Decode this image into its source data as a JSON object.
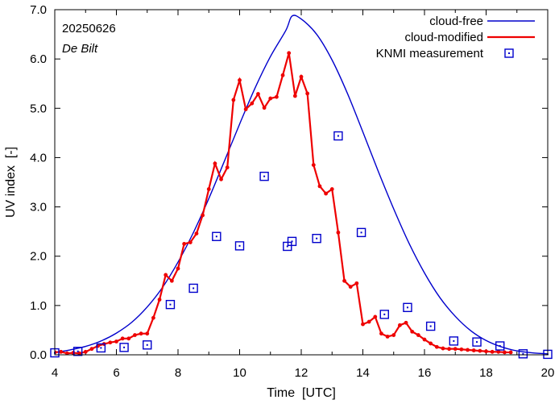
{
  "chart_data": {
    "type": "line",
    "xlabel": "Time  [UTC]",
    "ylabel": "UV index  [-]",
    "xlim": [
      4,
      20
    ],
    "ylim": [
      0,
      7
    ],
    "x_ticks": [
      4,
      6,
      8,
      10,
      12,
      14,
      16,
      18,
      20
    ],
    "x_tick_labels": [
      "4",
      "6",
      "8",
      "10",
      "12",
      "14",
      "16",
      "18",
      "20"
    ],
    "y_ticks": [
      0,
      1,
      2,
      3,
      4,
      5,
      6,
      7
    ],
    "y_tick_labels": [
      "0.0",
      "1.0",
      "2.0",
      "3.0",
      "4.0",
      "5.0",
      "6.0",
      "7.0"
    ],
    "annotations": {
      "date": "20250626",
      "location": "De Bilt"
    },
    "colors": {
      "cloud_free": "#0000cc",
      "cloud_modified": "#ee0000",
      "measurement": "#0000cc"
    },
    "series": [
      {
        "name": "cloud-free",
        "style": "line",
        "peak_x": 11.7,
        "peak_y": 6.87,
        "curve": {
          "x": [
            4.0,
            4.5,
            5.0,
            5.5,
            6.0,
            6.5,
            7.0,
            7.5,
            8.0,
            8.5,
            9.0,
            9.5,
            10.0,
            10.5,
            11.0,
            11.5,
            11.7,
            12.0,
            12.5,
            13.0,
            13.5,
            14.0,
            14.5,
            15.0,
            15.5,
            16.0,
            16.5,
            17.0,
            17.5,
            18.0,
            18.5,
            19.0,
            19.5,
            20.0
          ],
          "y": [
            0.05,
            0.1,
            0.17,
            0.28,
            0.44,
            0.66,
            0.97,
            1.37,
            1.88,
            2.48,
            3.17,
            3.92,
            4.68,
            5.41,
            6.05,
            6.58,
            6.87,
            6.81,
            6.5,
            5.98,
            5.3,
            4.52,
            3.72,
            2.96,
            2.26,
            1.66,
            1.16,
            0.78,
            0.49,
            0.29,
            0.16,
            0.08,
            0.04,
            0.02
          ]
        }
      },
      {
        "name": "cloud-modified",
        "style": "line+points",
        "x": [
          4.0,
          4.2,
          4.4,
          4.6,
          4.8,
          5.0,
          5.2,
          5.4,
          5.6,
          5.8,
          6.0,
          6.2,
          6.4,
          6.6,
          6.8,
          7.0,
          7.2,
          7.4,
          7.6,
          7.8,
          8.0,
          8.2,
          8.4,
          8.6,
          8.8,
          9.0,
          9.2,
          9.4,
          9.6,
          9.8,
          10.0,
          10.2,
          10.4,
          10.6,
          10.8,
          11.0,
          11.2,
          11.4,
          11.6,
          11.8,
          12.0,
          12.2,
          12.4,
          12.6,
          12.8,
          13.0,
          13.2,
          13.4,
          13.6,
          13.8,
          14.0,
          14.2,
          14.4,
          14.6,
          14.8,
          15.0,
          15.2,
          15.4,
          15.6,
          15.8,
          16.0,
          16.2,
          16.4,
          16.6,
          16.8,
          17.0,
          17.2,
          17.4,
          17.6,
          17.8,
          18.0,
          18.2,
          18.4,
          18.6,
          18.8
        ],
        "y": [
          0.05,
          0.06,
          0.03,
          0.04,
          0.03,
          0.06,
          0.12,
          0.18,
          0.22,
          0.25,
          0.27,
          0.33,
          0.33,
          0.4,
          0.43,
          0.43,
          0.75,
          1.12,
          1.62,
          1.5,
          1.75,
          2.25,
          2.28,
          2.46,
          2.83,
          3.36,
          3.88,
          3.56,
          3.8,
          5.17,
          5.57,
          4.98,
          5.1,
          5.29,
          5.01,
          5.2,
          5.23,
          5.67,
          6.12,
          5.25,
          5.64,
          5.3,
          3.85,
          3.42,
          3.27,
          3.36,
          2.48,
          1.5,
          1.38,
          1.45,
          0.62,
          0.67,
          0.77,
          0.43,
          0.37,
          0.4,
          0.6,
          0.65,
          0.47,
          0.4,
          0.31,
          0.23,
          0.16,
          0.13,
          0.12,
          0.12,
          0.11,
          0.1,
          0.09,
          0.08,
          0.07,
          0.06,
          0.06,
          0.05,
          0.05
        ]
      },
      {
        "name": "KNMI measurement",
        "style": "points",
        "x": [
          4.0,
          4.75,
          5.5,
          6.25,
          7.0,
          7.75,
          8.5,
          9.25,
          10.0,
          10.8,
          11.55,
          11.7,
          12.5,
          13.2,
          13.95,
          14.7,
          15.45,
          16.2,
          16.95,
          17.7,
          18.45,
          19.2,
          20.0
        ],
        "y": [
          0.04,
          0.07,
          0.14,
          0.15,
          0.2,
          1.02,
          1.35,
          2.4,
          2.21,
          3.62,
          2.2,
          2.3,
          2.36,
          4.44,
          2.48,
          0.82,
          0.96,
          0.58,
          0.28,
          0.26,
          0.18,
          0.02,
          0.01
        ]
      }
    ]
  }
}
